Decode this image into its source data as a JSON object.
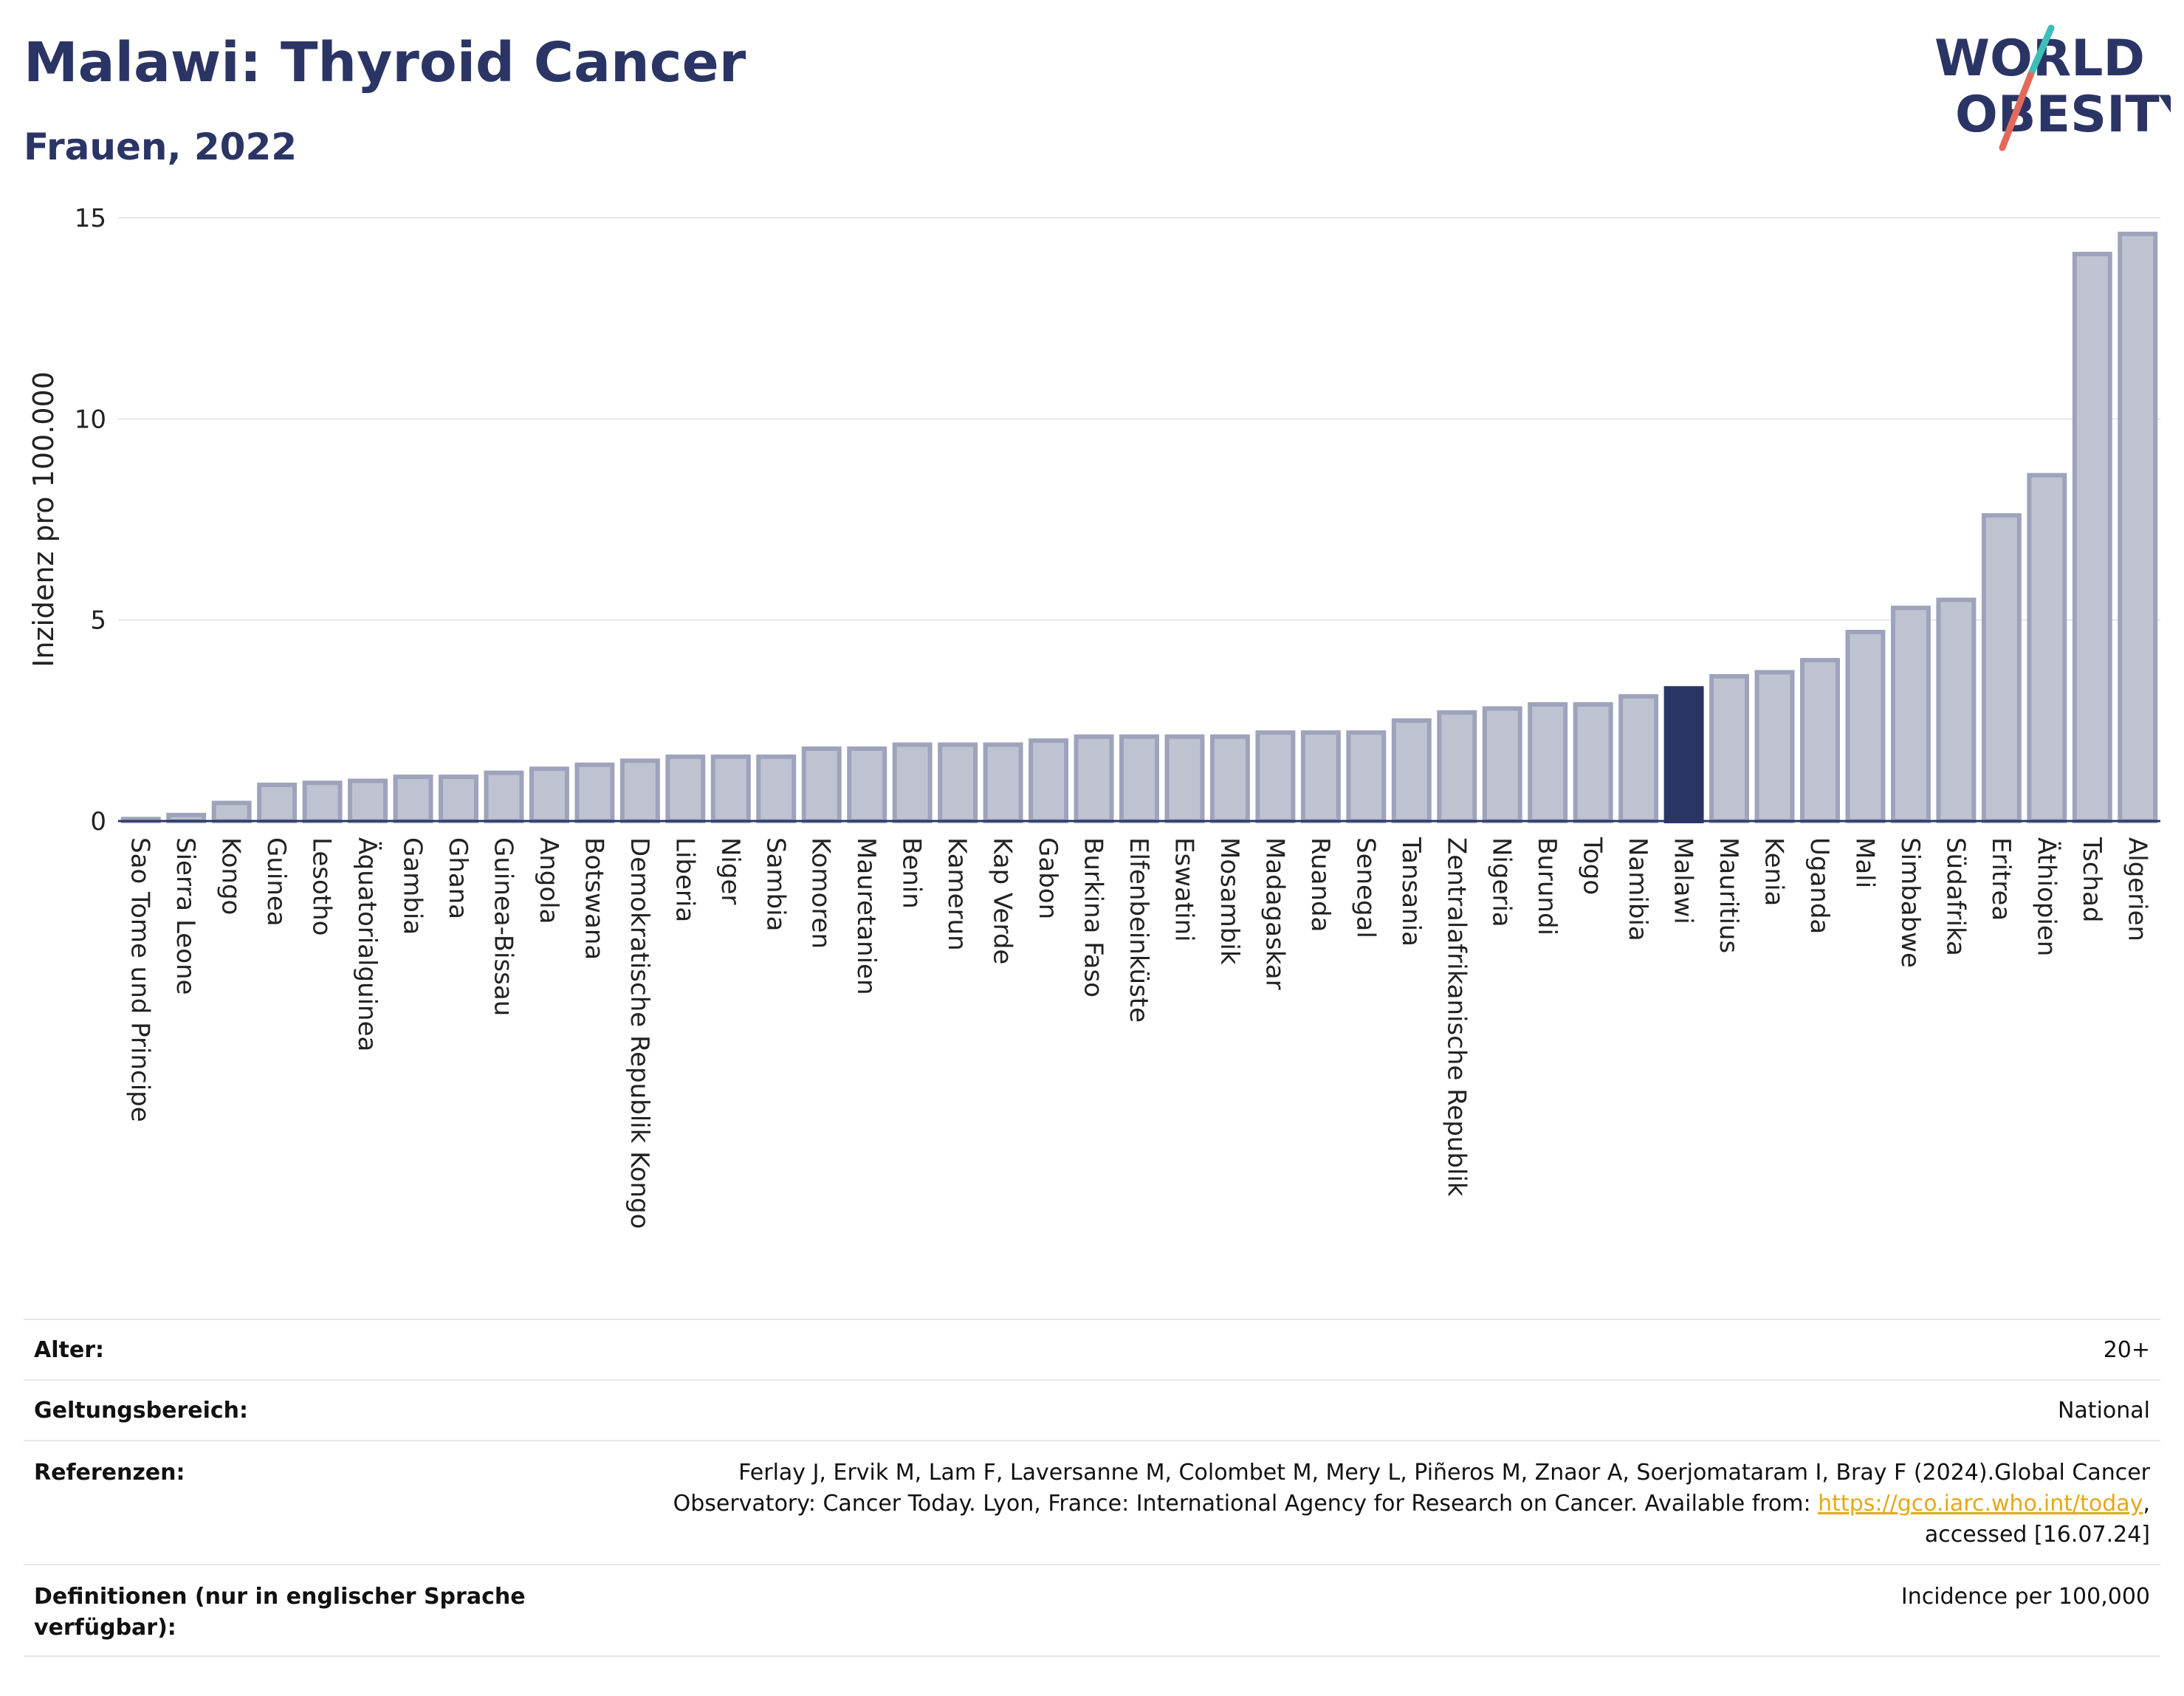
{
  "header": {
    "title": "Malawi: Thyroid Cancer",
    "subtitle": "Frauen, 2022"
  },
  "logo": {
    "line1": "WORLD",
    "line2": "OBESITY",
    "colors": {
      "text": "#2b3565",
      "slash_teal": "#3bbfb8",
      "slash_red": "#e36a5a"
    }
  },
  "colors": {
    "bar_default": "#bfc3d1",
    "bar_border": "#9ea3bb",
    "bar_highlight": "#2b3565",
    "grid": "#e6e6e6",
    "axis": "#2b3565"
  },
  "chart_data": {
    "type": "bar",
    "title": "Malawi: Thyroid Cancer",
    "subtitle": "Frauen, 2022",
    "xlabel": "",
    "ylabel": "Inzidenz pro 100.000",
    "ylim": [
      0,
      15
    ],
    "yticks": [
      0,
      5,
      10,
      15
    ],
    "grid": true,
    "highlight": "Malawi",
    "categories": [
      "Sao Tome und Principe",
      "Sierra Leone",
      "Kongo",
      "Guinea",
      "Lesotho",
      "Äquatorialguinea",
      "Gambia",
      "Ghana",
      "Guinea-Bissau",
      "Angola",
      "Botswana",
      "Demokratische Republik Kongo",
      "Liberia",
      "Niger",
      "Sambia",
      "Komoren",
      "Mauretanien",
      "Benin",
      "Kamerun",
      "Kap Verde",
      "Gabon",
      "Burkina Faso",
      "Elfenbeinküste",
      "Eswatini",
      "Mosambik",
      "Madagaskar",
      "Ruanda",
      "Senegal",
      "Tansania",
      "Zentralafrikanische Republik",
      "Nigeria",
      "Burundi",
      "Togo",
      "Namibia",
      "Malawi",
      "Mauritius",
      "Kenia",
      "Uganda",
      "Mali",
      "Simbabwe",
      "Südafrika",
      "Eritrea",
      "Äthiopien",
      "Tschad",
      "Algerien"
    ],
    "values": [
      0.05,
      0.15,
      0.45,
      0.9,
      0.95,
      1.0,
      1.1,
      1.1,
      1.2,
      1.3,
      1.4,
      1.5,
      1.6,
      1.6,
      1.6,
      1.8,
      1.8,
      1.9,
      1.9,
      1.9,
      2.0,
      2.1,
      2.1,
      2.1,
      2.1,
      2.2,
      2.2,
      2.2,
      2.5,
      2.7,
      2.8,
      2.9,
      2.9,
      3.1,
      3.3,
      3.6,
      3.7,
      4.0,
      4.7,
      5.3,
      5.5,
      7.6,
      8.6,
      14.1,
      14.6
    ]
  },
  "meta": {
    "rows": [
      {
        "label": "Alter:",
        "value": "20+"
      },
      {
        "label": "Geltungsbereich:",
        "value": "National"
      },
      {
        "label": "Referenzen:",
        "value_lines": [
          "Ferlay J, Ervik M, Lam F, Laversanne M, Colombet M, Mery L, Piñeros M, Znaor A, Soerjomataram I, Bray F (2024).Global Cancer",
          "Observatory: Cancer Today. Lyon, France: International Agency for Research on Cancer. Available from: ",
          "accessed [16.07.24]"
        ],
        "link": "https://gco.iarc.who.int/today",
        "link_suffix": ","
      },
      {
        "label_lines": [
          "Definitionen (nur in englischer Sprache",
          "verfügbar):"
        ],
        "value": "Incidence per 100,000"
      }
    ]
  }
}
